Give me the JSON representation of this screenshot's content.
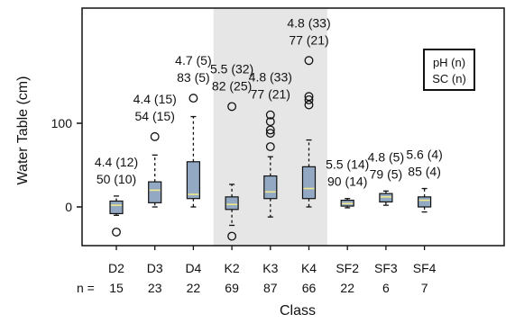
{
  "colors": {
    "box_fill": "#93a9c3",
    "median": "#f0e88a",
    "shade": "#e6e6e6",
    "line": "#111111"
  },
  "chart_data": {
    "type": "box",
    "xlabel": "Class",
    "ylabel": "Water Table (cm)",
    "ylim": [
      -40,
      180
    ],
    "yticks": [
      0,
      100
    ],
    "shaded_categories": [
      "K2",
      "K3",
      "K4"
    ],
    "n_label": "n =",
    "legend": [
      "pH (n)",
      "SC (n)"
    ],
    "categories": [
      {
        "name": "D2",
        "n": "15",
        "ph": "4.4 (12)",
        "sc": "50 (10)",
        "q1": -8,
        "median": 2,
        "q3": 7,
        "wlo": -10,
        "whi": 13,
        "outliers": [
          -30
        ]
      },
      {
        "name": "D3",
        "n": "23",
        "ph": "4.4 (15)",
        "sc": "54 (15)",
        "q1": 5,
        "median": 20,
        "q3": 30,
        "wlo": 0,
        "whi": 62,
        "outliers": [
          84
        ]
      },
      {
        "name": "D4",
        "n": "22",
        "ph": "4.7 (5)",
        "sc": "83 (5)",
        "q1": 10,
        "median": 15,
        "q3": 54,
        "wlo": 0,
        "whi": 108,
        "outliers": [
          130
        ]
      },
      {
        "name": "K2",
        "n": "69",
        "ph": "5.5 (32)",
        "sc": "82 (25)",
        "q1": -3,
        "median": 3,
        "q3": 12,
        "wlo": -22,
        "whi": 27,
        "outliers": [
          -35,
          120
        ]
      },
      {
        "name": "K3",
        "n": "87",
        "ph": "4.8 (33)",
        "sc": "77 (21)",
        "q1": 10,
        "median": 18,
        "q3": 37,
        "wlo": -12,
        "whi": 60,
        "outliers": [
          72,
          88,
          92,
          102,
          110
        ]
      },
      {
        "name": "K4",
        "n": "66",
        "ph": "4.8 (33)",
        "sc": "77 (21)",
        "q1": 10,
        "median": 22,
        "q3": 48,
        "wlo": 0,
        "whi": 80,
        "outliers": [
          122,
          128,
          132,
          175
        ]
      },
      {
        "name": "SF2",
        "n": "22",
        "ph": "5.5 (14)",
        "sc": "90 (14)",
        "q1": 1,
        "median": 4,
        "q3": 8,
        "wlo": -1,
        "whi": 10,
        "outliers": []
      },
      {
        "name": "SF3",
        "n": "6",
        "ph": "4.8 (5)",
        "sc": "79 (5)",
        "q1": 6,
        "median": 12,
        "q3": 16,
        "wlo": 2,
        "whi": 19,
        "outliers": []
      },
      {
        "name": "SF4",
        "n": "7",
        "ph": "5.6 (4)",
        "sc": "85 (4)",
        "q1": 0,
        "median": 8,
        "q3": 12,
        "wlo": -6,
        "whi": 22,
        "outliers": []
      }
    ]
  }
}
